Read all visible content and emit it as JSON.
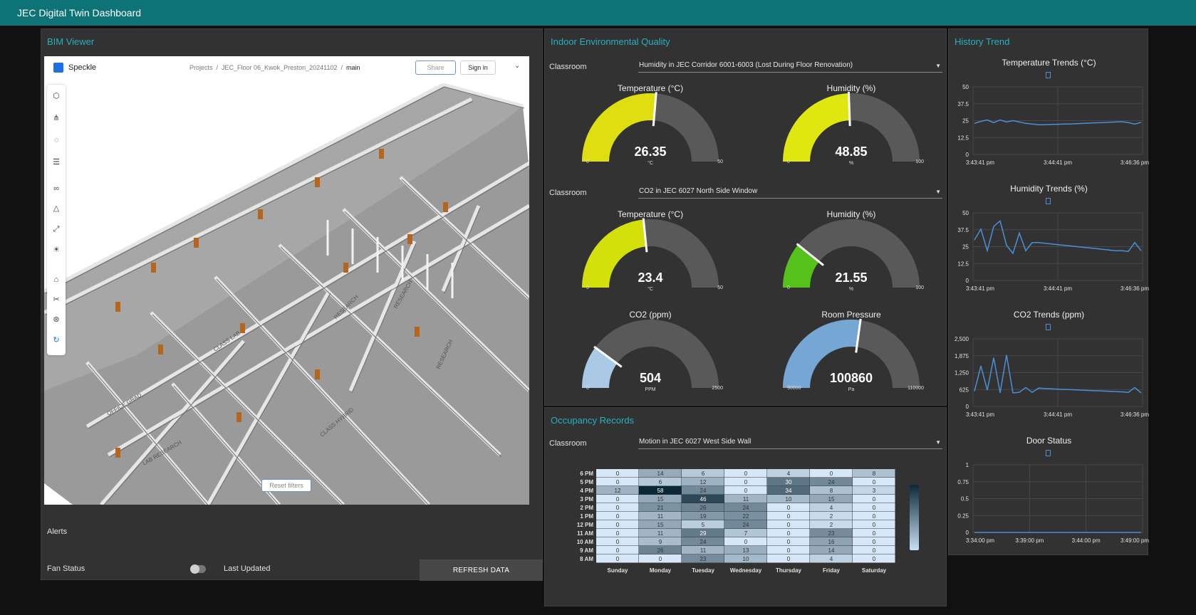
{
  "app": {
    "title": "JEC Digital Twin Dashboard"
  },
  "bim": {
    "title": "BIM Viewer",
    "speckle": {
      "brand": "Speckle",
      "crumbs": [
        "Projects",
        "/",
        "JEC_Floor 06_Kwok_Preston_20241102",
        "/",
        "main"
      ],
      "share": "Share",
      "signin": "Sign in",
      "reset": "Reset filters",
      "rooms": [
        "OFFICE GRAD",
        "LAB RESEARCH",
        "CLASS LAB",
        "CLASS HYBRID",
        "RESEARCH",
        "RESEARCH",
        "RESEARCH"
      ]
    },
    "alerts": "Alerts",
    "fan_status": "Fan Status",
    "fan_on": false,
    "last_updated": "Last Updated",
    "refresh": "REFRESH DATA"
  },
  "ieq": {
    "title": "Indoor Environmental Quality",
    "classroom_label": "Classroom",
    "select1": "Humidity in JEC Corridor 6001-6003 (Lost During Floor Renovation)",
    "select2": "CO2 in JEC 6027 North Side Window",
    "gauges": [
      {
        "title": "Temperature (°C)",
        "value": 26.35,
        "display": "26.35",
        "unit": "°C",
        "min": "0",
        "max": "50",
        "minv": 0,
        "maxv": 50,
        "color": "#dede10"
      },
      {
        "title": "Humidity (%)",
        "value": 48.85,
        "display": "48.85",
        "unit": "%",
        "min": "0",
        "max": "100",
        "minv": 0,
        "maxv": 100,
        "color": "#dfe610"
      },
      {
        "title": "Temperature (°C)",
        "value": 23.4,
        "display": "23.4",
        "unit": "°C",
        "min": "0",
        "max": "50",
        "minv": 0,
        "maxv": 50,
        "color": "#d4e00c"
      },
      {
        "title": "Humidity (%)",
        "value": 21.55,
        "display": "21.55",
        "unit": "%",
        "min": "0",
        "max": "100",
        "minv": 0,
        "maxv": 100,
        "color": "#55c21b"
      },
      {
        "title": "CO2 (ppm)",
        "value": 504,
        "display": "504",
        "unit": "PPM",
        "min": "0",
        "max": "2500",
        "minv": 0,
        "maxv": 2500,
        "color": "#a9c9e6"
      },
      {
        "title": "Room Pressure",
        "value": 100860,
        "display": "100860",
        "unit": "Pa",
        "min": "90000",
        "max": "110000",
        "minv": 90000,
        "maxv": 110000,
        "color": "#76a7d4"
      }
    ]
  },
  "occupancy": {
    "title": "Occupancy Records",
    "classroom_label": "Classroom",
    "select": "Motion in JEC 6027 West Side Wall",
    "chart_data": {
      "type": "heatmap",
      "days": [
        "Sunday",
        "Monday",
        "Tuesday",
        "Wednesday",
        "Thursday",
        "Friday",
        "Saturday"
      ],
      "hours": [
        "6 PM",
        "5 PM",
        "4 PM",
        "3 PM",
        "2 PM",
        "1 PM",
        "12 PM",
        "11 AM",
        "10 AM",
        "9 AM",
        "8 AM"
      ],
      "values": [
        [
          0,
          14,
          6,
          0,
          4,
          0,
          8
        ],
        [
          0,
          6,
          12,
          0,
          30,
          24,
          0
        ],
        [
          12,
          58,
          24,
          0,
          34,
          8,
          3
        ],
        [
          0,
          15,
          46,
          11,
          10,
          15,
          0
        ],
        [
          0,
          21,
          26,
          24,
          0,
          4,
          0
        ],
        [
          0,
          11,
          19,
          22,
          0,
          2,
          0
        ],
        [
          0,
          15,
          5,
          24,
          0,
          2,
          0
        ],
        [
          0,
          11,
          29,
          7,
          0,
          23,
          0
        ],
        [
          0,
          9,
          24,
          0,
          0,
          16,
          0
        ],
        [
          0,
          26,
          11,
          13,
          0,
          14,
          0
        ],
        [
          0,
          0,
          23,
          10,
          0,
          4,
          0
        ]
      ],
      "max": 58
    }
  },
  "history": {
    "title": "History Trend",
    "charts": [
      {
        "type": "line",
        "title": "Temperature Trends (°C)",
        "yticks": [
          "50",
          "37.5",
          "25",
          "12.5",
          "0"
        ],
        "ylim": [
          0,
          50
        ],
        "xticks": [
          "3:43:41 pm",
          "3:44:41 pm",
          "3:46:36 pm"
        ],
        "y": [
          23,
          24.5,
          25.5,
          23.5,
          25.5,
          24,
          25,
          24,
          23,
          22.5,
          22,
          22,
          22.2,
          22.3,
          22.5,
          22.6,
          22.8,
          23,
          23.2,
          23.4,
          23.6,
          23.8,
          24,
          24.2,
          23.5,
          22.5,
          23.8
        ]
      },
      {
        "type": "line",
        "title": "Humidity Trends (%)",
        "yticks": [
          "50",
          "37.5",
          "25",
          "12.5",
          "0"
        ],
        "ylim": [
          0,
          50
        ],
        "xticks": [
          "3:43:41 pm",
          "3:44:41 pm",
          "3:46:36 pm"
        ],
        "y": [
          30,
          38,
          22,
          40,
          44,
          26,
          20,
          35,
          22,
          28,
          28,
          27.5,
          27,
          26.5,
          26,
          25.5,
          25,
          24.5,
          24,
          23.5,
          23,
          22.5,
          22,
          22,
          21.5,
          28,
          22
        ]
      },
      {
        "type": "line",
        "title": "CO2 Trends (ppm)",
        "yticks": [
          "2,500",
          "1,875",
          "1,250",
          "625",
          "0"
        ],
        "ylim": [
          0,
          2500
        ],
        "xticks": [
          "3:43:41 pm",
          "3:44:41 pm",
          "3:46:36 pm"
        ],
        "y": [
          560,
          1500,
          600,
          1800,
          500,
          1900,
          500,
          520,
          700,
          520,
          680,
          660,
          650,
          640,
          630,
          620,
          610,
          600,
          590,
          580,
          570,
          560,
          550,
          540,
          520,
          700,
          500
        ]
      },
      {
        "type": "line",
        "title": "Door Status",
        "yticks": [
          "1",
          "0.75",
          "0.5",
          "0.25",
          "0"
        ],
        "ylim": [
          0,
          1
        ],
        "xticks": [
          "3:34:00 pm",
          "3:39:00 pm",
          "3:44:00 pm",
          "3:49:00 pm"
        ],
        "y": [
          0,
          0,
          0,
          0,
          0,
          0,
          0,
          0,
          0,
          0,
          0,
          0
        ]
      }
    ]
  },
  "colors": {
    "accent": "#27b0c0",
    "topbar": "#0d7377",
    "line": "#4a90d9",
    "gauge_track": "#595959"
  }
}
